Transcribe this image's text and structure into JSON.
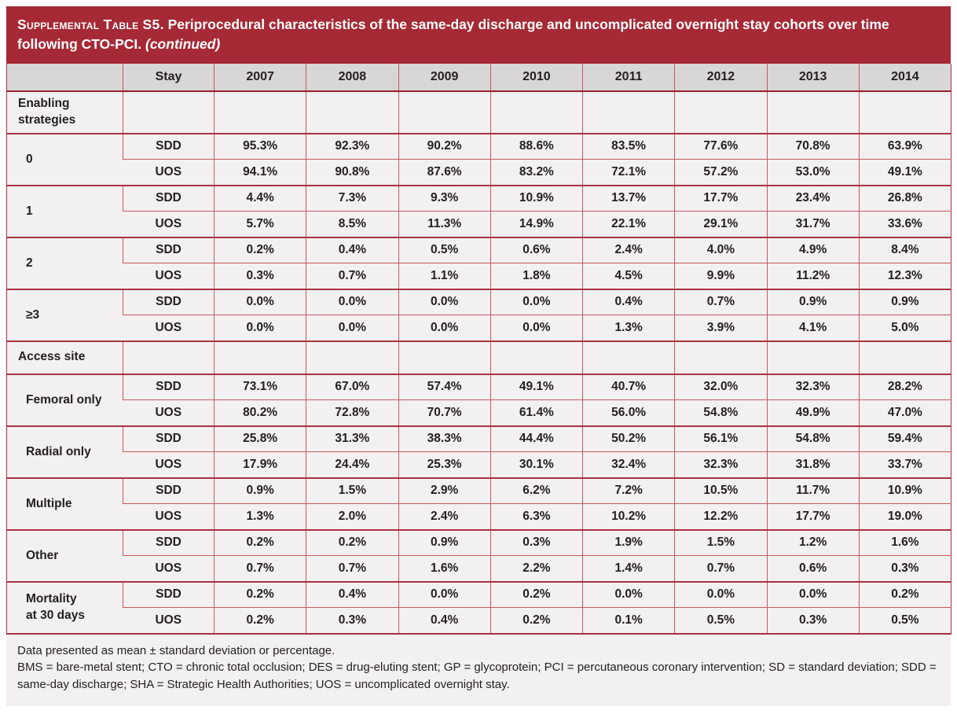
{
  "colors": {
    "accent": "#a62936",
    "header_bg": "#d8d6d6",
    "body_bg": "#f2f0f1",
    "grid_thin": "#c55962",
    "grid_thick": "#a93341",
    "text": "#231f20"
  },
  "title": {
    "label": "Supplemental Table S5.",
    "text": " Periprocedural characteristics of the same-day discharge and uncomplicated overnight stay cohorts over time following CTO-PCI. ",
    "continued": "(continued)"
  },
  "table": {
    "corner_label": "",
    "stay_header": "Stay",
    "years": [
      "2007",
      "2008",
      "2009",
      "2010",
      "2011",
      "2012",
      "2013",
      "2014"
    ],
    "row_keys": [
      "SDD",
      "UOS"
    ],
    "rows": [
      {
        "kind": "section",
        "label": "Enabling strategies",
        "lines": [
          "Enabling",
          "strategies"
        ]
      },
      {
        "kind": "group",
        "label": "0",
        "SDD": [
          "95.3%",
          "92.3%",
          "90.2%",
          "88.6%",
          "83.5%",
          "77.6%",
          "70.8%",
          "63.9%"
        ],
        "UOS": [
          "94.1%",
          "90.8%",
          "87.6%",
          "83.2%",
          "72.1%",
          "57.2%",
          "53.0%",
          "49.1%"
        ]
      },
      {
        "kind": "group",
        "label": "1",
        "SDD": [
          "4.4%",
          "7.3%",
          "9.3%",
          "10.9%",
          "13.7%",
          "17.7%",
          "23.4%",
          "26.8%"
        ],
        "UOS": [
          "5.7%",
          "8.5%",
          "11.3%",
          "14.9%",
          "22.1%",
          "29.1%",
          "31.7%",
          "33.6%"
        ]
      },
      {
        "kind": "group",
        "label": "2",
        "SDD": [
          "0.2%",
          "0.4%",
          "0.5%",
          "0.6%",
          "2.4%",
          "4.0%",
          "4.9%",
          "8.4%"
        ],
        "UOS": [
          "0.3%",
          "0.7%",
          "1.1%",
          "1.8%",
          "4.5%",
          "9.9%",
          "11.2%",
          "12.3%"
        ]
      },
      {
        "kind": "group",
        "label": "≥3",
        "SDD": [
          "0.0%",
          "0.0%",
          "0.0%",
          "0.0%",
          "0.4%",
          "0.7%",
          "0.9%",
          "0.9%"
        ],
        "UOS": [
          "0.0%",
          "0.0%",
          "0.0%",
          "0.0%",
          "1.3%",
          "3.9%",
          "4.1%",
          "5.0%"
        ]
      },
      {
        "kind": "section",
        "label": "Access site",
        "lines": [
          "Access site"
        ]
      },
      {
        "kind": "group",
        "label": "Femoral only",
        "SDD": [
          "73.1%",
          "67.0%",
          "57.4%",
          "49.1%",
          "40.7%",
          "32.0%",
          "32.3%",
          "28.2%"
        ],
        "UOS": [
          "80.2%",
          "72.8%",
          "70.7%",
          "61.4%",
          "56.0%",
          "54.8%",
          "49.9%",
          "47.0%"
        ]
      },
      {
        "kind": "group",
        "label": "Radial only",
        "SDD": [
          "25.8%",
          "31.3%",
          "38.3%",
          "44.4%",
          "50.2%",
          "56.1%",
          "54.8%",
          "59.4%"
        ],
        "UOS": [
          "17.9%",
          "24.4%",
          "25.3%",
          "30.1%",
          "32.4%",
          "32.3%",
          "31.8%",
          "33.7%"
        ]
      },
      {
        "kind": "group",
        "label": "Multiple",
        "SDD": [
          "0.9%",
          "1.5%",
          "2.9%",
          "6.2%",
          "7.2%",
          "10.5%",
          "11.7%",
          "10.9%"
        ],
        "UOS": [
          "1.3%",
          "2.0%",
          "2.4%",
          "6.3%",
          "10.2%",
          "12.2%",
          "17.7%",
          "19.0%"
        ]
      },
      {
        "kind": "group",
        "label": "Other",
        "SDD": [
          "0.2%",
          "0.2%",
          "0.9%",
          "0.3%",
          "1.9%",
          "1.5%",
          "1.2%",
          "1.6%"
        ],
        "UOS": [
          "0.7%",
          "0.7%",
          "1.6%",
          "2.2%",
          "1.4%",
          "0.7%",
          "0.6%",
          "0.3%"
        ]
      },
      {
        "kind": "group",
        "label": "Mortality at 30 days",
        "lines": [
          "Mortality",
          "at 30 days"
        ],
        "SDD": [
          "0.2%",
          "0.4%",
          "0.0%",
          "0.2%",
          "0.0%",
          "0.0%",
          "0.0%",
          "0.2%"
        ],
        "UOS": [
          "0.2%",
          "0.3%",
          "0.4%",
          "0.2%",
          "0.1%",
          "0.5%",
          "0.3%",
          "0.5%"
        ]
      }
    ]
  },
  "footnotes": [
    "Data presented as mean ± standard deviation or percentage.",
    "BMS = bare-metal stent; CTO = chronic total occlusion; DES = drug-eluting stent; GP = glycoprotein; PCI = percutaneous coronary intervention; SD = standard deviation; SDD = same-day discharge; SHA = Strategic Health Authorities; UOS = uncomplicated overnight stay."
  ]
}
